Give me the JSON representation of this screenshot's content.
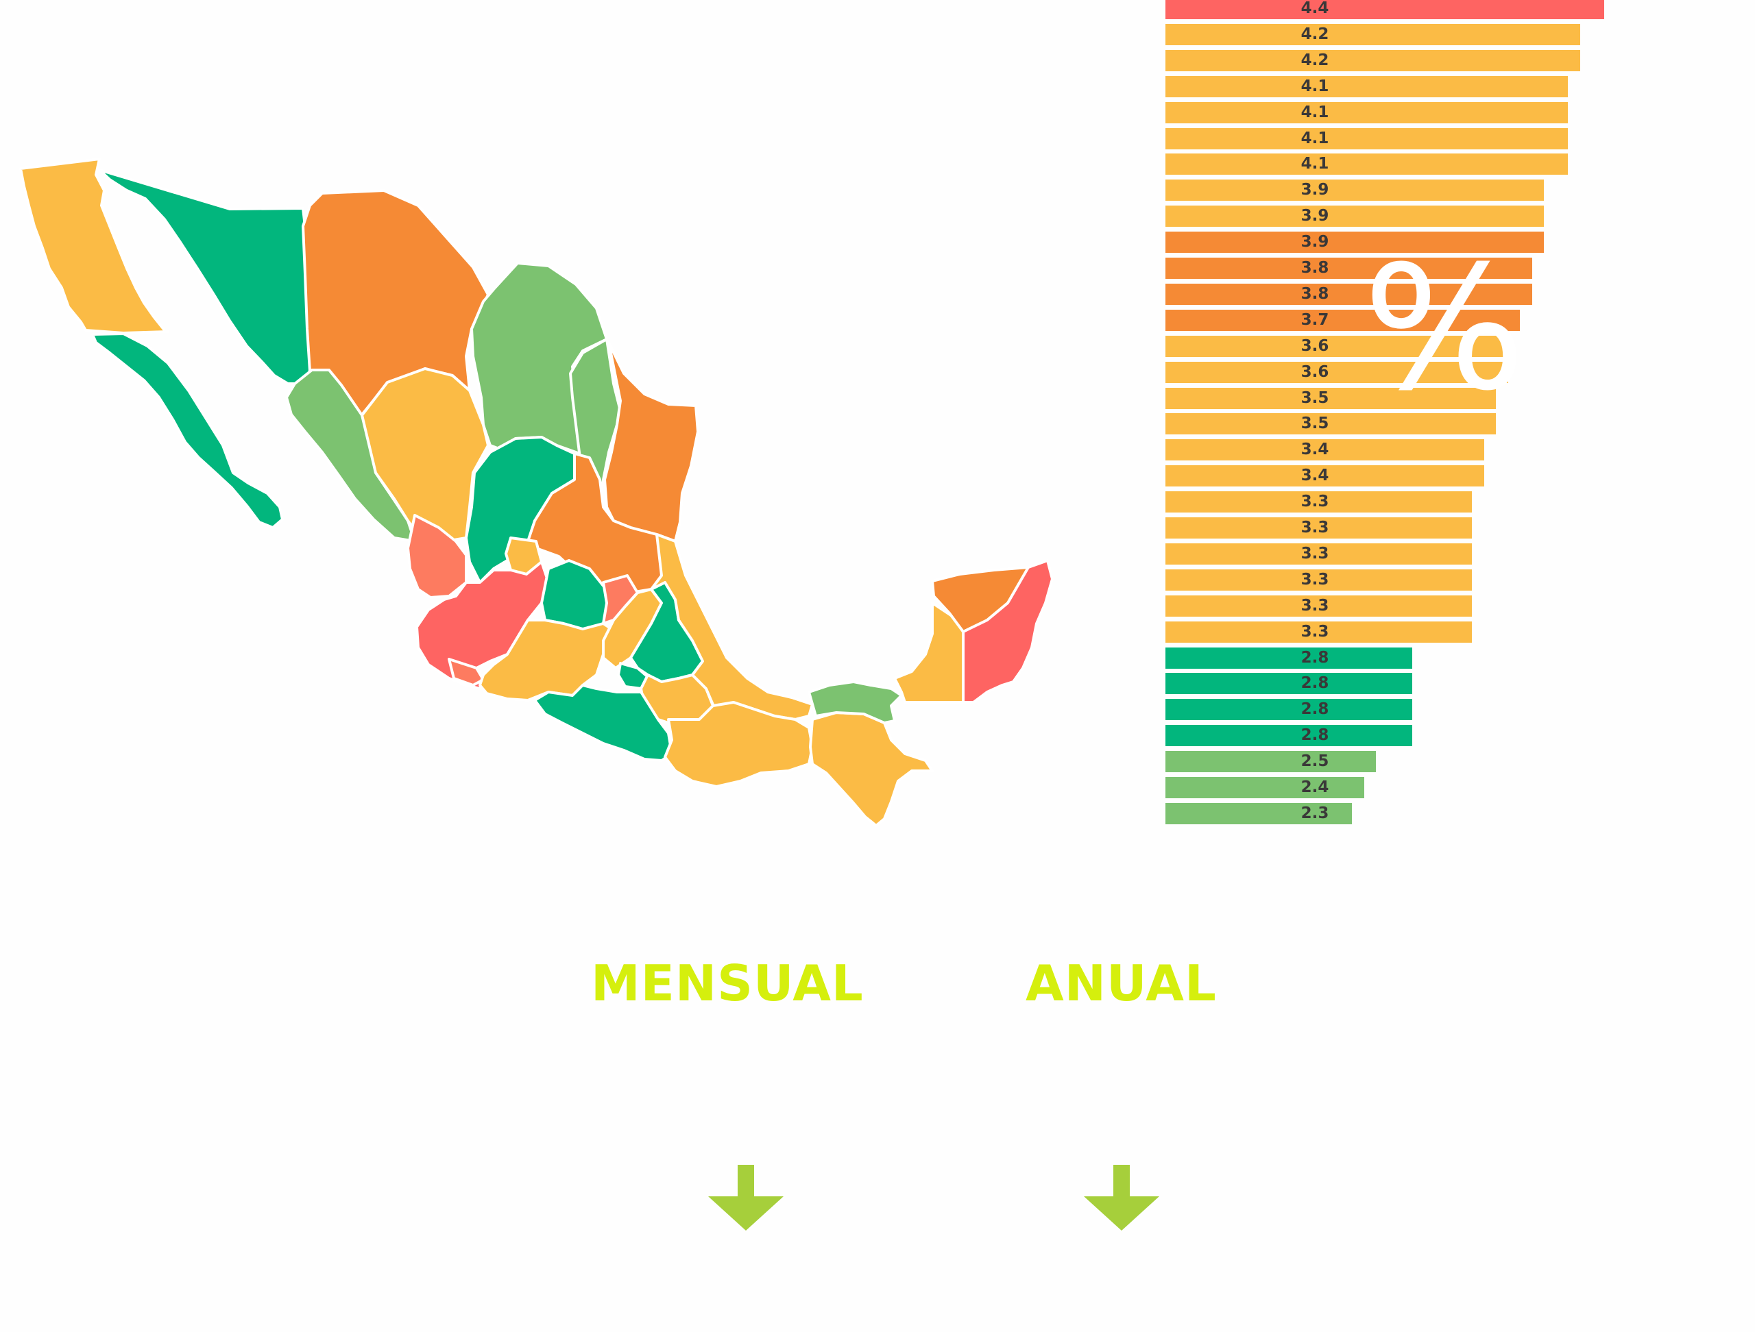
{
  "colors": {
    "red": "#fe6462",
    "salmon": "#fd7b60",
    "dark_orange": "#f58a35",
    "yellow_orange": "#fbbb45",
    "dark_green": "#02b67d",
    "light_green": "#7cc270",
    "label_text": "#3a3838",
    "heading_lime": "#d5ef0d",
    "arrow_green": "#a6cf3b",
    "background": "#fefefe"
  },
  "icons": {
    "percent_symbol": "%",
    "arrow_monthly": "down-arrow-icon",
    "arrow_annual": "down-arrow-icon"
  },
  "chart_data": {
    "type": "bar",
    "orientation": "horizontal",
    "values": [
      4.4,
      4.2,
      4.2,
      4.1,
      4.1,
      4.1,
      4.1,
      3.9,
      3.9,
      3.9,
      3.8,
      3.8,
      3.7,
      3.6,
      3.6,
      3.5,
      3.5,
      3.4,
      3.4,
      3.3,
      3.3,
      3.3,
      3.3,
      3.3,
      3.3,
      2.8,
      2.8,
      2.8,
      2.8,
      2.5,
      2.4,
      2.3
    ],
    "value_labels": [
      "4.4",
      "4.2",
      "4.2",
      "4.1",
      "4.1",
      "4.1",
      "4.1",
      "3.9",
      "3.9",
      "3.9",
      "3.8",
      "3.8",
      "3.7",
      "3.6",
      "3.6",
      "3.5",
      "3.5",
      "3.4",
      "3.4",
      "3.3",
      "3.3",
      "3.3",
      "3.3",
      "3.3",
      "3.3",
      "2.8",
      "2.8",
      "2.8",
      "2.8",
      "2.5",
      "2.4",
      "2.3"
    ],
    "bar_colors": [
      "red",
      "yellow_orange",
      "yellow_orange",
      "yellow_orange",
      "yellow_orange",
      "yellow_orange",
      "yellow_orange",
      "yellow_orange",
      "yellow_orange",
      "dark_orange",
      "dark_orange",
      "dark_orange",
      "dark_orange",
      "yellow_orange",
      "yellow_orange",
      "yellow_orange",
      "yellow_orange",
      "yellow_orange",
      "yellow_orange",
      "yellow_orange",
      "yellow_orange",
      "yellow_orange",
      "yellow_orange",
      "yellow_orange",
      "yellow_orange",
      "dark_green",
      "dark_green",
      "dark_green",
      "dark_green",
      "light_green",
      "light_green",
      "light_green"
    ],
    "title": "",
    "xlabel": "",
    "ylabel": ""
  },
  "headings": {
    "monthly": "MENSUAL",
    "annual": "ANUAL"
  }
}
